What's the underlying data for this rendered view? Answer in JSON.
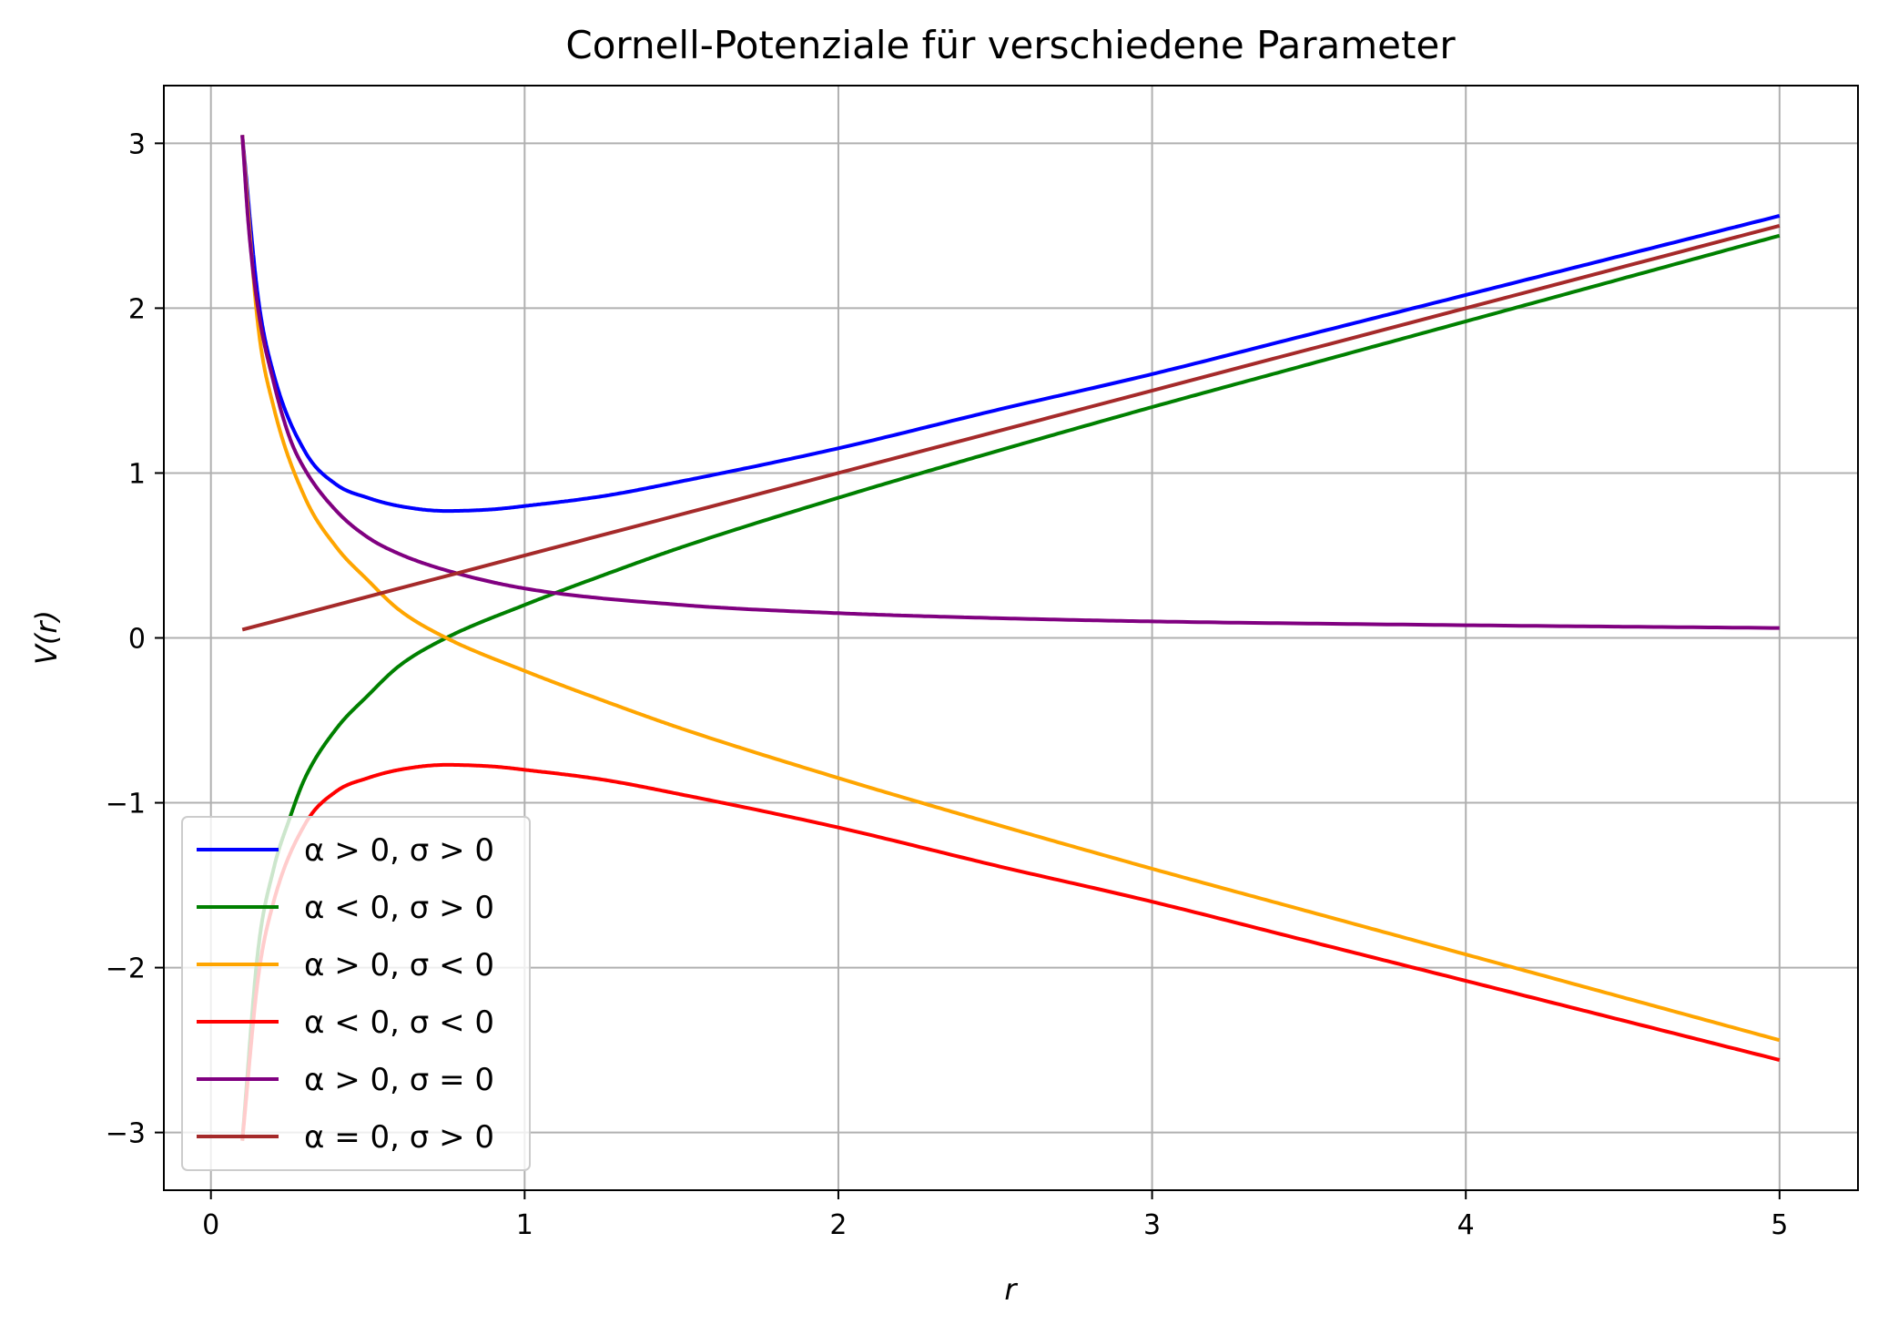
{
  "chart_data": {
    "type": "line",
    "title": "Cornell-Potenziale für verschiedene Parameter",
    "xlabel": "r",
    "ylabel": "V(r)",
    "xlim": [
      -0.15,
      5.25
    ],
    "ylim": [
      -3.35,
      3.35
    ],
    "xticks": [
      0,
      1,
      2,
      3,
      4,
      5
    ],
    "yticks": [
      -3,
      -2,
      -1,
      0,
      1,
      2,
      3
    ],
    "grid": true,
    "legend_position": "lower-left",
    "r_range": [
      0.1,
      5
    ],
    "series": [
      {
        "name": "α > 0, σ > 0",
        "color": "#0000ff",
        "x": [
          0.1,
          0.15,
          0.2,
          0.3,
          0.4,
          0.5,
          0.6,
          0.75,
          0.9,
          1.0,
          1.25,
          1.5,
          2,
          2.5,
          3,
          3.5,
          4,
          4.5,
          5
        ],
        "y": [
          3.05,
          2.07,
          1.6,
          1.13,
          0.93,
          0.85,
          0.8,
          0.77,
          0.78,
          0.8,
          0.86,
          0.95,
          1.15,
          1.38,
          1.6,
          1.84,
          2.08,
          2.32,
          2.56
        ]
      },
      {
        "name": "α < 0, σ > 0",
        "color": "#008000",
        "x": [
          0.1,
          0.15,
          0.2,
          0.25,
          0.3,
          0.4,
          0.5,
          0.6,
          0.75,
          1.0,
          1.25,
          1.5,
          2,
          2.5,
          3,
          3.5,
          4,
          4.5,
          5
        ],
        "y": [
          -3.05,
          -1.9,
          -1.4,
          -1.1,
          -0.85,
          -0.55,
          -0.35,
          -0.17,
          0.0,
          0.2,
          0.38,
          0.55,
          0.85,
          1.13,
          1.4,
          1.66,
          1.92,
          2.18,
          2.44
        ]
      },
      {
        "name": "α > 0, σ < 0",
        "color": "#ffa500",
        "x": [
          0.1,
          0.15,
          0.2,
          0.3,
          0.4,
          0.5,
          0.6,
          0.75,
          1.0,
          1.25,
          1.5,
          2,
          2.5,
          3,
          3.5,
          4,
          4.5,
          5
        ],
        "y": [
          3.05,
          1.9,
          1.4,
          0.85,
          0.55,
          0.35,
          0.17,
          0.0,
          -0.2,
          -0.38,
          -0.55,
          -0.85,
          -1.13,
          -1.4,
          -1.66,
          -1.92,
          -2.18,
          -2.44
        ]
      },
      {
        "name": "α < 0, σ < 0",
        "color": "#ff0000",
        "x": [
          0.1,
          0.15,
          0.2,
          0.3,
          0.4,
          0.5,
          0.6,
          0.75,
          0.9,
          1.0,
          1.25,
          1.5,
          2,
          2.5,
          3,
          3.5,
          4,
          4.5,
          5
        ],
        "y": [
          -3.05,
          -2.07,
          -1.6,
          -1.13,
          -0.93,
          -0.85,
          -0.8,
          -0.77,
          -0.78,
          -0.8,
          -0.86,
          -0.95,
          -1.15,
          -1.38,
          -1.6,
          -1.84,
          -2.08,
          -2.32,
          -2.56
        ]
      },
      {
        "name": "α > 0, σ = 0",
        "color": "#800080",
        "x": [
          0.1,
          0.12,
          0.15,
          0.2,
          0.25,
          0.3,
          0.4,
          0.5,
          0.6,
          0.75,
          1.0,
          1.5,
          2,
          2.5,
          3,
          4,
          5
        ],
        "y": [
          3.05,
          2.5,
          2.0,
          1.55,
          1.22,
          1.02,
          0.77,
          0.61,
          0.51,
          0.41,
          0.3,
          0.2,
          0.15,
          0.12,
          0.1,
          0.077,
          0.06
        ]
      },
      {
        "name": "α = 0, σ > 0",
        "color": "#a52a2a",
        "x": [
          0.1,
          5
        ],
        "y": [
          0.05,
          2.5
        ]
      }
    ]
  }
}
